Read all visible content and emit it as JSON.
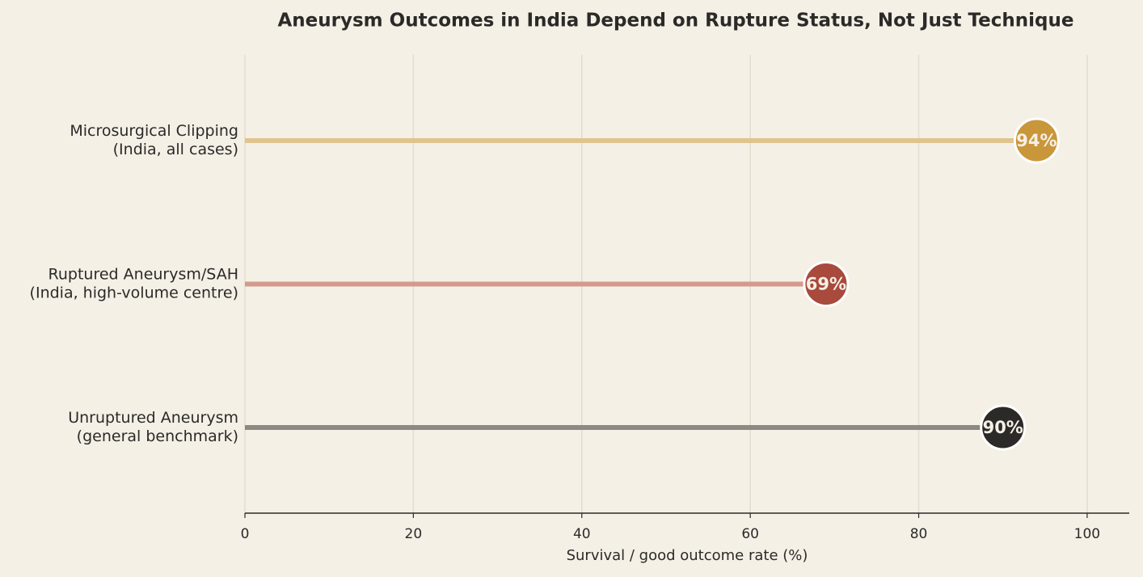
{
  "chart_data": {
    "type": "lollipop",
    "title": "Aneurysm Outcomes in India Depend on Rupture Status, Not Just Technique",
    "categories": [
      [
        "Microsurgical Clipping",
        "(India, all cases)"
      ],
      [
        "Ruptured Aneurysm/SAH",
        "(India, high-volume centre)"
      ],
      [
        "Unruptured Aneurysm",
        "(general benchmark)"
      ]
    ],
    "values": [
      94,
      69,
      90
    ],
    "value_labels": [
      "94%",
      "69%",
      "90%"
    ],
    "colors": [
      "#c9963a",
      "#a84a3c",
      "#2b2a28"
    ],
    "line_colors": [
      "#e0c48e",
      "#d49a8e",
      "#8c8a82"
    ],
    "xlabel": "Survival / good outcome rate (%)",
    "xlim": [
      0,
      105
    ],
    "xticks": [
      0,
      20,
      40,
      60,
      80,
      100
    ],
    "grid": true
  }
}
